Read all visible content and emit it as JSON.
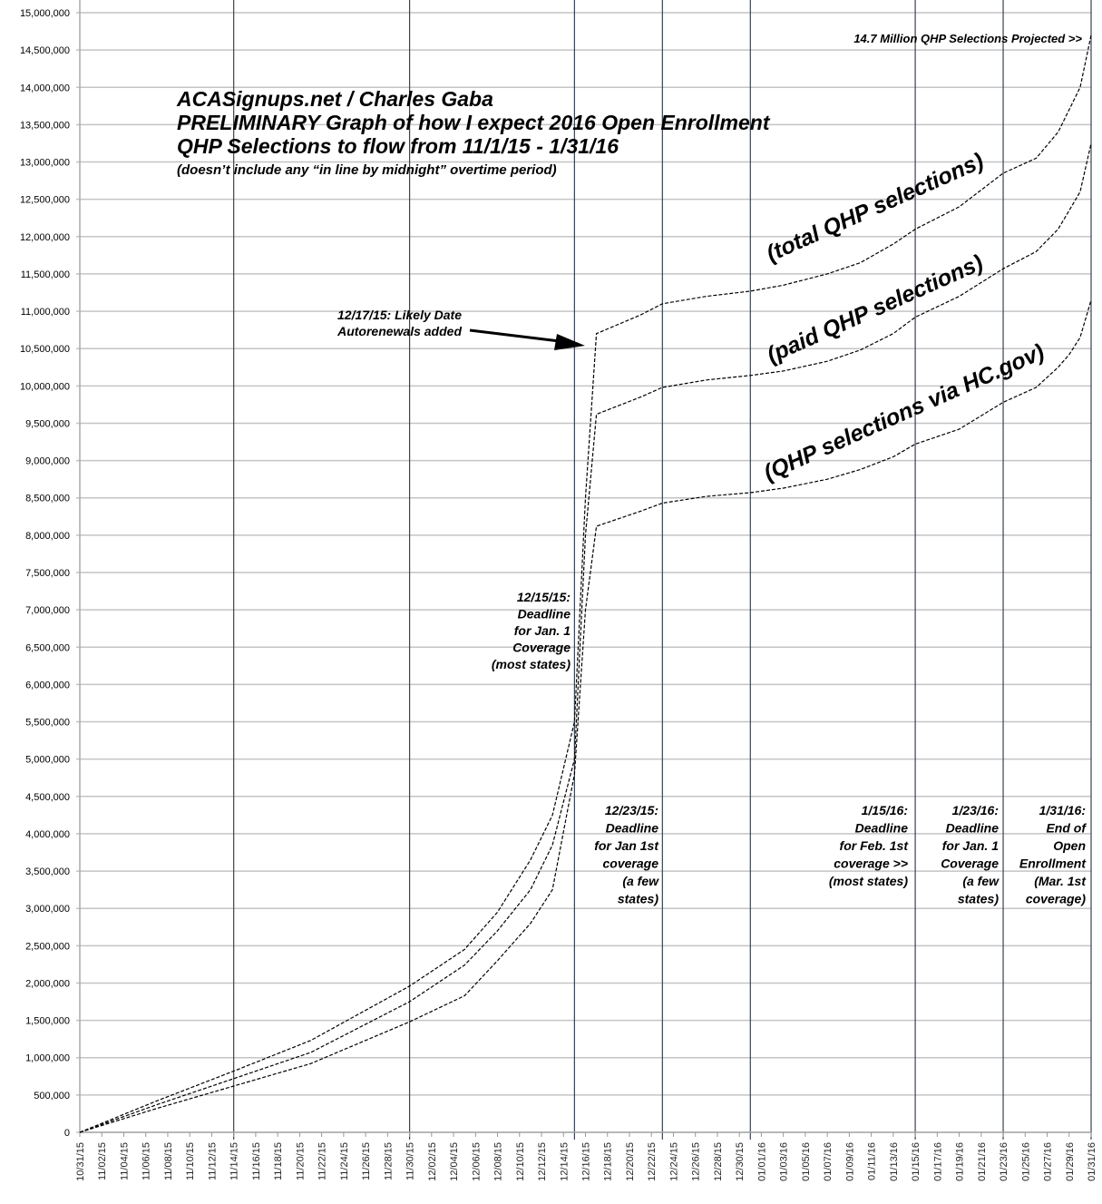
{
  "chart_data": {
    "type": "line",
    "title_lines": [
      "ACASignups.net / Charles Gaba",
      "PRELIMINARY Graph of how I expect 2016 Open Enrollment",
      "QHP Selections to flow from 11/1/15 - 1/31/16"
    ],
    "subtitle": "(doesn’t include any “in line by midnight” overtime period)",
    "xlabel": "",
    "ylabel": "",
    "xlim": [
      "2015-10-31",
      "2016-01-31"
    ],
    "ylim": [
      0,
      15000000
    ],
    "y_tick_step": 500000,
    "y_tick_labels": [
      "0",
      "500,000",
      "1,000,000",
      "1,500,000",
      "2,000,000",
      "2,500,000",
      "3,000,000",
      "3,500,000",
      "4,000,000",
      "4,500,000",
      "5,000,000",
      "5,500,000",
      "6,000,000",
      "6,500,000",
      "7,000,000",
      "7,500,000",
      "8,000,000",
      "8,500,000",
      "9,000,000",
      "9,500,000",
      "10,000,000",
      "10,500,000",
      "11,000,000",
      "11,500,000",
      "12,000,000",
      "12,500,000",
      "13,000,000",
      "13,500,000",
      "14,000,000",
      "14,500,000",
      "15,000,000"
    ],
    "x_tick_labels": [
      "10/31/15",
      "11/02/15",
      "11/04/15",
      "11/06/15",
      "11/08/15",
      "11/10/15",
      "11/12/15",
      "11/14/15",
      "11/16/15",
      "11/18/15",
      "11/20/15",
      "11/22/15",
      "11/24/15",
      "11/26/15",
      "11/28/15",
      "11/30/15",
      "12/02/15",
      "12/04/15",
      "12/06/15",
      "12/08/15",
      "12/10/15",
      "12/12/15",
      "12/14/15",
      "12/16/15",
      "12/18/15",
      "12/20/15",
      "12/22/15",
      "12/24/15",
      "12/26/15",
      "12/28/15",
      "12/30/15",
      "01/01/16",
      "01/03/16",
      "01/05/16",
      "01/07/16",
      "01/09/16",
      "01/11/16",
      "01/13/16",
      "01/15/16",
      "01/17/16",
      "01/19/16",
      "01/21/16",
      "01/23/16",
      "01/25/16",
      "01/27/16",
      "01/29/16",
      "01/31/16"
    ],
    "grid": {
      "horizontal": true,
      "vertical_at": [
        "2015-11-14",
        "2015-11-30",
        "2015-12-15",
        "2015-12-23",
        "2015-12-31",
        "2016-01-15",
        "2016-01-23",
        "2016-01-31"
      ]
    },
    "line_style": "dashed",
    "colors": {
      "line": "#000000",
      "hgrid": "#c4c4c4",
      "vgrid": "#3a4252"
    },
    "series": [
      {
        "name": "(total QHP selections)",
        "points": [
          [
            "2015-10-31",
            0
          ],
          [
            "2015-11-07",
            420000
          ],
          [
            "2015-11-14",
            820000
          ],
          [
            "2015-11-21",
            1230000
          ],
          [
            "2015-11-30",
            1960000
          ],
          [
            "2015-12-05",
            2450000
          ],
          [
            "2015-12-08",
            2950000
          ],
          [
            "2015-12-11",
            3650000
          ],
          [
            "2015-12-13",
            4250000
          ],
          [
            "2015-12-15",
            5500000
          ],
          [
            "2015-12-16",
            8500000
          ],
          [
            "2015-12-17",
            10700000
          ],
          [
            "2015-12-21",
            10950000
          ],
          [
            "2015-12-23",
            11100000
          ],
          [
            "2015-12-27",
            11200000
          ],
          [
            "2015-12-31",
            11270000
          ],
          [
            "2016-01-03",
            11350000
          ],
          [
            "2016-01-07",
            11500000
          ],
          [
            "2016-01-10",
            11650000
          ],
          [
            "2016-01-13",
            11900000
          ],
          [
            "2016-01-15",
            12100000
          ],
          [
            "2016-01-19",
            12400000
          ],
          [
            "2016-01-23",
            12850000
          ],
          [
            "2016-01-26",
            13050000
          ],
          [
            "2016-01-28",
            13400000
          ],
          [
            "2016-01-29",
            13700000
          ],
          [
            "2016-01-30",
            14000000
          ],
          [
            "2016-01-31",
            14700000
          ]
        ]
      },
      {
        "name": "(paid QHP selections)",
        "points": [
          [
            "2015-10-31",
            0
          ],
          [
            "2015-11-07",
            370000
          ],
          [
            "2015-11-14",
            720000
          ],
          [
            "2015-11-21",
            1070000
          ],
          [
            "2015-11-30",
            1750000
          ],
          [
            "2015-12-05",
            2240000
          ],
          [
            "2015-12-08",
            2700000
          ],
          [
            "2015-12-11",
            3250000
          ],
          [
            "2015-12-13",
            3850000
          ],
          [
            "2015-12-15",
            5000000
          ],
          [
            "2015-12-16",
            8000000
          ],
          [
            "2015-12-17",
            9620000
          ],
          [
            "2015-12-21",
            9850000
          ],
          [
            "2015-12-23",
            9980000
          ],
          [
            "2015-12-27",
            10080000
          ],
          [
            "2015-12-31",
            10140000
          ],
          [
            "2016-01-03",
            10200000
          ],
          [
            "2016-01-07",
            10330000
          ],
          [
            "2016-01-10",
            10480000
          ],
          [
            "2016-01-13",
            10700000
          ],
          [
            "2016-01-15",
            10920000
          ],
          [
            "2016-01-19",
            11200000
          ],
          [
            "2016-01-23",
            11570000
          ],
          [
            "2016-01-26",
            11800000
          ],
          [
            "2016-01-28",
            12100000
          ],
          [
            "2016-01-29",
            12350000
          ],
          [
            "2016-01-30",
            12600000
          ],
          [
            "2016-01-31",
            13250000
          ]
        ]
      },
      {
        "name": "(QHP selections via HC.gov)",
        "points": [
          [
            "2015-10-31",
            0
          ],
          [
            "2015-11-07",
            320000
          ],
          [
            "2015-11-14",
            620000
          ],
          [
            "2015-11-21",
            920000
          ],
          [
            "2015-11-30",
            1480000
          ],
          [
            "2015-12-05",
            1830000
          ],
          [
            "2015-12-08",
            2300000
          ],
          [
            "2015-12-11",
            2800000
          ],
          [
            "2015-12-13",
            3250000
          ],
          [
            "2015-12-15",
            4800000
          ],
          [
            "2015-12-16",
            7000000
          ],
          [
            "2015-12-17",
            8120000
          ],
          [
            "2015-12-21",
            8320000
          ],
          [
            "2015-12-23",
            8430000
          ],
          [
            "2015-12-27",
            8520000
          ],
          [
            "2015-12-31",
            8570000
          ],
          [
            "2016-01-03",
            8630000
          ],
          [
            "2016-01-07",
            8750000
          ],
          [
            "2016-01-10",
            8880000
          ],
          [
            "2016-01-13",
            9050000
          ],
          [
            "2016-01-15",
            9220000
          ],
          [
            "2016-01-19",
            9420000
          ],
          [
            "2016-01-23",
            9780000
          ],
          [
            "2016-01-26",
            9980000
          ],
          [
            "2016-01-28",
            10250000
          ],
          [
            "2016-01-29",
            10420000
          ],
          [
            "2016-01-30",
            10650000
          ],
          [
            "2016-01-31",
            11150000
          ]
        ]
      }
    ],
    "annotations": {
      "projected": "14.7 Million QHP Selections Projected >>",
      "autorenewals": [
        "12/17/15: Likely Date",
        "Autorenewals added"
      ],
      "dec15": [
        "12/15/15:",
        "Deadline",
        "for Jan. 1",
        "Coverage",
        "(most states)"
      ],
      "dec23": [
        "12/23/15:",
        "Deadline",
        "for Jan 1st",
        "coverage",
        "(a few",
        "states)"
      ],
      "jan15": [
        "1/15/16:",
        "Deadline",
        "for Feb. 1st",
        "coverage >>",
        "(most states)"
      ],
      "jan23": [
        "1/23/16:",
        "Deadline",
        "for Jan. 1",
        "Coverage",
        "(a few",
        "states)"
      ],
      "jan31": [
        "1/31/16:",
        "End of",
        "Open",
        "Enrollment",
        "(Mar. 1st",
        "coverage)"
      ]
    }
  }
}
